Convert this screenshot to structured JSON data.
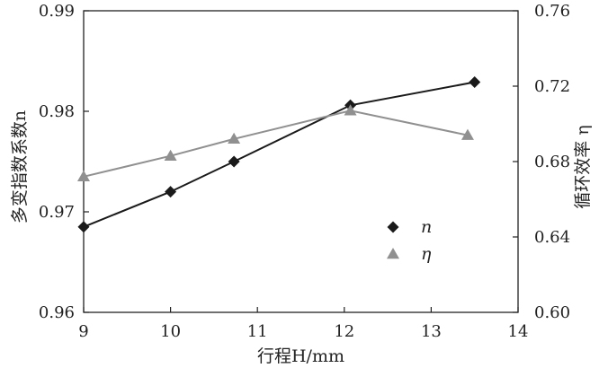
{
  "chart_data": {
    "type": "line",
    "x_axis": {
      "label": "行程H/mm",
      "range": [
        9,
        14
      ],
      "ticks": [
        9,
        10,
        11,
        12,
        13,
        14
      ]
    },
    "y_axis_left": {
      "label": "多变指数系数n",
      "range": [
        0.96,
        0.99
      ],
      "ticks": [
        "0.96",
        "0.97",
        "0.98",
        "0.99"
      ]
    },
    "y_axis_right": {
      "label": "循环效率 η",
      "range": [
        0.6,
        0.76
      ],
      "ticks": [
        "0.60",
        "0.64",
        "0.68",
        "0.72",
        "0.76"
      ]
    },
    "series": [
      {
        "name": "n",
        "axis": "left",
        "marker": "diamond",
        "color": "#1a1a1a",
        "x": [
          9.0,
          10.0,
          10.73,
          12.07,
          13.5
        ],
        "y": [
          0.9685,
          0.972,
          0.975,
          0.9806,
          0.9829
        ]
      },
      {
        "name": "η",
        "axis": "right",
        "marker": "triangle",
        "color": "#909090",
        "x": [
          9.0,
          10.0,
          10.73,
          12.07,
          13.42
        ],
        "y": [
          0.672,
          0.683,
          0.692,
          0.707,
          0.694
        ]
      }
    ],
    "legend": {
      "position": "lower-right inside"
    },
    "grid": false
  }
}
